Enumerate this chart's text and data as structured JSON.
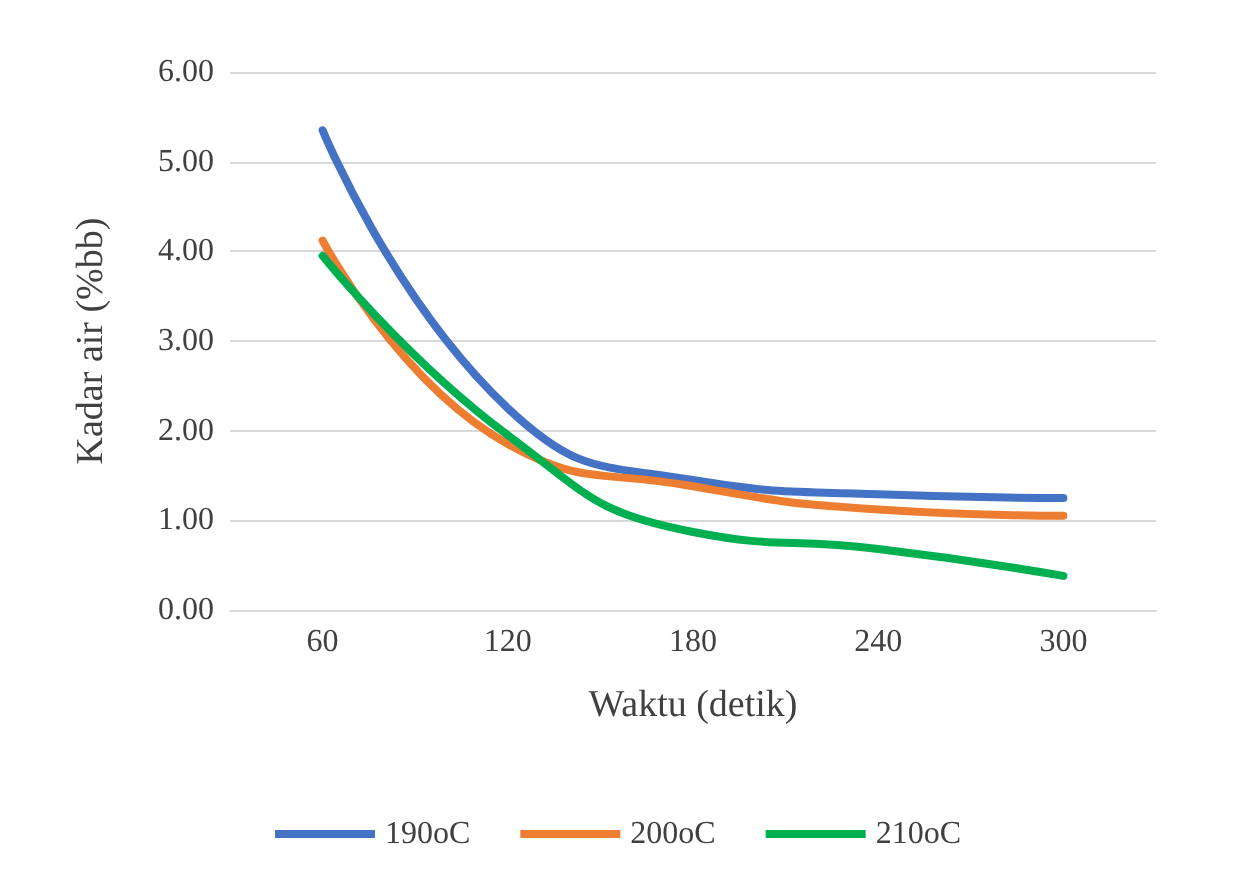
{
  "chart_data": {
    "type": "line",
    "xlabel": "Waktu (detik)",
    "ylabel": "Kadar air (%bb)",
    "categories": [
      "60",
      "120",
      "180",
      "240",
      "300"
    ],
    "series": [
      {
        "name": "190oC",
        "color": "#4472c4",
        "values": [
          5.35,
          2.25,
          1.45,
          1.29,
          1.25
        ]
      },
      {
        "name": "200oC",
        "color": "#ed7d31",
        "values": [
          4.12,
          1.85,
          1.38,
          1.12,
          1.05
        ]
      },
      {
        "name": "210oC",
        "color": "#00b050",
        "values": [
          3.95,
          1.95,
          0.87,
          0.68,
          0.38
        ]
      }
    ],
    "ylim": [
      0,
      6
    ],
    "yticks": [
      {
        "value": 0,
        "label": "0.00"
      },
      {
        "value": 1,
        "label": "1.00"
      },
      {
        "value": 2,
        "label": "2.00"
      },
      {
        "value": 3,
        "label": "3.00"
      },
      {
        "value": 4,
        "label": "4.00"
      },
      {
        "value": 5,
        "label": "5.00"
      },
      {
        "value": 6,
        "label": "6.00"
      }
    ],
    "grid": "y",
    "legend": "bottom",
    "marker": "none",
    "line_style": "solid"
  }
}
